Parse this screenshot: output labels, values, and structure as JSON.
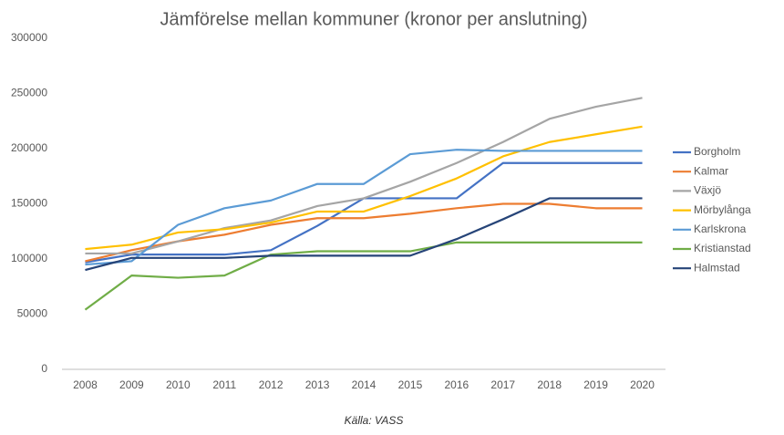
{
  "chart_data": {
    "type": "line",
    "title": "Jämförelse mellan kommuner (kronor per anslutning)",
    "footnote": "Källa: VASS",
    "categories": [
      "2008",
      "2009",
      "2010",
      "2011",
      "2012",
      "2013",
      "2014",
      "2015",
      "2016",
      "2017",
      "2018",
      "2019",
      "2020"
    ],
    "ylim": [
      0,
      300000
    ],
    "yticks": [
      0,
      50000,
      100000,
      150000,
      200000,
      250000,
      300000
    ],
    "grid": false,
    "legend": "right",
    "series": [
      {
        "name": "Borgholm",
        "color": "#4472c4",
        "values": [
          97000,
          104000,
          104000,
          104000,
          108000,
          130000,
          155000,
          155000,
          155000,
          187000,
          187000,
          187000,
          187000
        ]
      },
      {
        "name": "Kalmar",
        "color": "#ed7d31",
        "values": [
          98000,
          108000,
          116000,
          122000,
          131000,
          137000,
          137000,
          141000,
          146000,
          150000,
          150000,
          146000,
          146000
        ]
      },
      {
        "name": "Växjö",
        "color": "#a5a5a5",
        "values": [
          105000,
          105000,
          116000,
          128000,
          135000,
          148000,
          155000,
          170000,
          187000,
          206000,
          227000,
          238000,
          246000
        ]
      },
      {
        "name": "Mörbylånga",
        "color": "#ffc000",
        "values": [
          109000,
          113000,
          124000,
          127000,
          133000,
          143000,
          143000,
          157000,
          173000,
          193000,
          206000,
          213000,
          220000
        ]
      },
      {
        "name": "Karlskrona",
        "color": "#5b9bd5",
        "values": [
          95000,
          98000,
          131000,
          146000,
          153000,
          168000,
          168000,
          195000,
          199000,
          198000,
          198000,
          198000,
          198000
        ]
      },
      {
        "name": "Kristianstad",
        "color": "#70ad47",
        "values": [
          54000,
          85000,
          83000,
          85000,
          104000,
          107000,
          107000,
          107000,
          115000,
          115000,
          115000,
          115000,
          115000
        ]
      },
      {
        "name": "Halmstad",
        "color": "#264478",
        "values": [
          90000,
          101000,
          101000,
          101000,
          103000,
          103000,
          103000,
          103000,
          118000,
          136000,
          155000,
          155000,
          155000
        ]
      }
    ]
  }
}
